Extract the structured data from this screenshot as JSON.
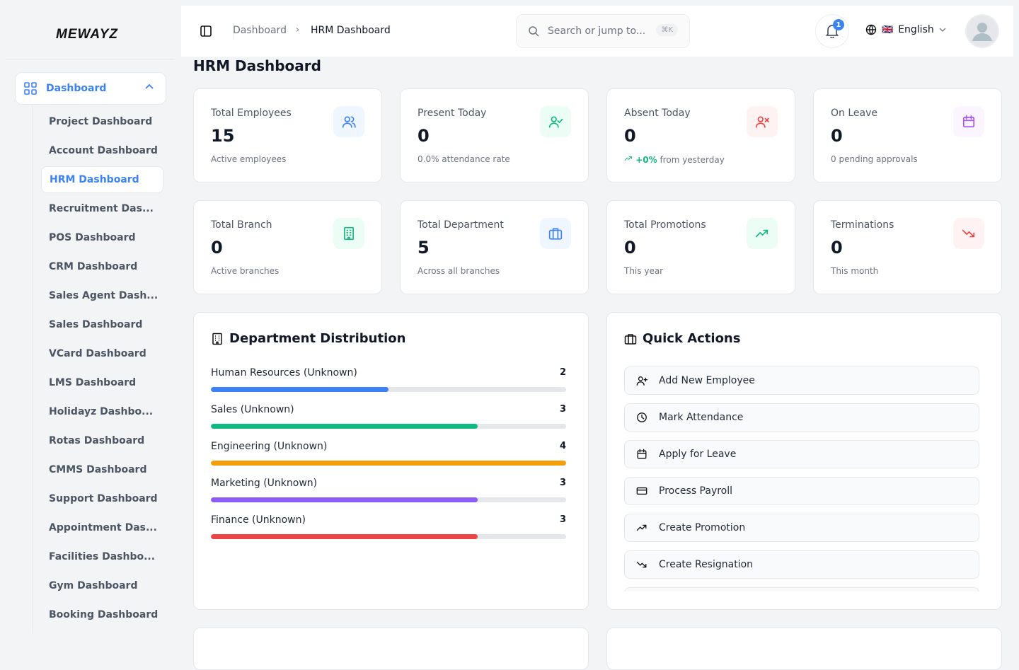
{
  "brand": {
    "logo": "MEWAYZ"
  },
  "sidebar": {
    "parent": "Dashboard",
    "items": [
      {
        "label": "Project Dashboard"
      },
      {
        "label": "Account Dashboard"
      },
      {
        "label": "HRM Dashboard",
        "active": true
      },
      {
        "label": "Recruitment Das..."
      },
      {
        "label": "POS Dashboard"
      },
      {
        "label": "CRM Dashboard"
      },
      {
        "label": "Sales Agent Dash..."
      },
      {
        "label": "Sales Dashboard"
      },
      {
        "label": "VCard Dashboard"
      },
      {
        "label": "LMS Dashboard"
      },
      {
        "label": "Holidayz Dashbo..."
      },
      {
        "label": "Rotas Dashboard"
      },
      {
        "label": "CMMS Dashboard"
      },
      {
        "label": "Support Dashboard"
      },
      {
        "label": "Appointment Das..."
      },
      {
        "label": "Facilities Dashbo..."
      },
      {
        "label": "Gym Dashboard"
      },
      {
        "label": "Booking Dashboard"
      }
    ]
  },
  "header": {
    "breadcrumb": [
      "Dashboard",
      "HRM Dashboard"
    ],
    "search_placeholder": "Search or jump to...",
    "shortcut": "⌘K",
    "notifications": "1",
    "language": "English",
    "flag": "🇬🇧"
  },
  "page": {
    "title": "HRM Dashboard"
  },
  "stats": [
    {
      "label": "Total Employees",
      "value": "15",
      "sub": "Active employees",
      "icon": "users-icon",
      "color": "#3b82f6",
      "bg": "#eff6ff"
    },
    {
      "label": "Present Today",
      "value": "0",
      "sub": "0.0% attendance rate",
      "icon": "user-check-icon",
      "color": "#10b981",
      "bg": "#ecfdf5"
    },
    {
      "label": "Absent Today",
      "value": "0",
      "trend": "+0%",
      "sub": "from yesterday",
      "icon": "user-x-icon",
      "color": "#ef4444",
      "bg": "#fef2f2"
    },
    {
      "label": "On Leave",
      "value": "0",
      "sub": "0 pending approvals",
      "icon": "calendar-icon",
      "color": "#a855f7",
      "bg": "#faf5ff"
    },
    {
      "label": "Total Branch",
      "value": "0",
      "sub": "Active branches",
      "icon": "building-icon",
      "color": "#10b981",
      "bg": "#ecfdf5"
    },
    {
      "label": "Total Department",
      "value": "5",
      "sub": "Across all branches",
      "icon": "briefcase-icon",
      "color": "#3b82f6",
      "bg": "#eff6ff"
    },
    {
      "label": "Total Promotions",
      "value": "0",
      "sub": "This year",
      "icon": "trending-up-icon",
      "color": "#10b981",
      "bg": "#ecfdf5"
    },
    {
      "label": "Terminations",
      "value": "0",
      "sub": "This month",
      "icon": "trending-down-icon",
      "color": "#ef4444",
      "bg": "#fef2f2"
    }
  ],
  "departments": {
    "title": "Department Distribution",
    "max": 4,
    "items": [
      {
        "name": "Human Resources (Unknown)",
        "count": 2,
        "color": "#3b82f6"
      },
      {
        "name": "Sales (Unknown)",
        "count": 3,
        "color": "#10b981"
      },
      {
        "name": "Engineering (Unknown)",
        "count": 4,
        "color": "#f59e0b"
      },
      {
        "name": "Marketing (Unknown)",
        "count": 3,
        "color": "#8b5cf6"
      },
      {
        "name": "Finance (Unknown)",
        "count": 3,
        "color": "#ef4444"
      }
    ]
  },
  "quick_actions": {
    "title": "Quick Actions",
    "items": [
      {
        "label": "Add New Employee",
        "icon": "user-plus-icon"
      },
      {
        "label": "Mark Attendance",
        "icon": "clock-icon"
      },
      {
        "label": "Apply for Leave",
        "icon": "calendar-icon"
      },
      {
        "label": "Process Payroll",
        "icon": "credit-card-icon"
      },
      {
        "label": "Create Promotion",
        "icon": "trending-up-icon"
      },
      {
        "label": "Create Resignation",
        "icon": "trending-down-icon"
      },
      {
        "label": "",
        "icon": ""
      }
    ]
  }
}
